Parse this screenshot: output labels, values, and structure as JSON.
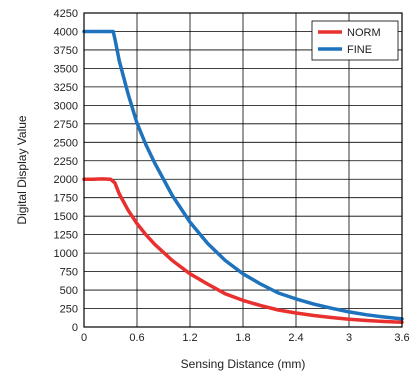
{
  "chart_data": {
    "type": "line",
    "title": "",
    "xlabel": "Sensing Distance (mm)",
    "ylabel": "Digital Display Value",
    "xlim": [
      0,
      3.6
    ],
    "ylim": [
      0,
      4250
    ],
    "x_ticks": [
      0,
      0.6,
      1.2,
      1.8,
      2.4,
      3,
      3.6
    ],
    "x_tick_labels": [
      "0",
      "0.6",
      "1.2",
      "1.8",
      "2.4",
      "3",
      "3.6"
    ],
    "y_ticks": [
      0,
      250,
      500,
      750,
      1000,
      1250,
      1500,
      1750,
      2000,
      2250,
      2500,
      2750,
      3000,
      3250,
      3500,
      3750,
      4000,
      4250
    ],
    "y_tick_labels": [
      "0",
      "250",
      "500",
      "750",
      "1000",
      "1250",
      "1500",
      "1750",
      "2000",
      "2250",
      "2500",
      "2750",
      "3000",
      "3250",
      "3500",
      "3750",
      "4000",
      "4250"
    ],
    "grid": true,
    "legend": "top-right",
    "series": [
      {
        "name": "NORM",
        "color": "#e8302f",
        "points": [
          [
            0,
            2000
          ],
          [
            0.1,
            2000
          ],
          [
            0.2,
            2005
          ],
          [
            0.3,
            2000
          ],
          [
            0.35,
            1950
          ],
          [
            0.4,
            1800
          ],
          [
            0.5,
            1580
          ],
          [
            0.6,
            1400
          ],
          [
            0.7,
            1250
          ],
          [
            0.8,
            1120
          ],
          [
            1.0,
            900
          ],
          [
            1.2,
            720
          ],
          [
            1.4,
            580
          ],
          [
            1.6,
            450
          ],
          [
            1.8,
            360
          ],
          [
            2.0,
            290
          ],
          [
            2.2,
            230
          ],
          [
            2.4,
            190
          ],
          [
            2.6,
            155
          ],
          [
            2.8,
            128
          ],
          [
            3.0,
            105
          ],
          [
            3.2,
            88
          ],
          [
            3.4,
            75
          ],
          [
            3.6,
            65
          ]
        ]
      },
      {
        "name": "FINE",
        "color": "#1f72bc",
        "points": [
          [
            0,
            4000
          ],
          [
            0.1,
            4000
          ],
          [
            0.2,
            4000
          ],
          [
            0.33,
            4000
          ],
          [
            0.35,
            3900
          ],
          [
            0.4,
            3600
          ],
          [
            0.5,
            3150
          ],
          [
            0.6,
            2760
          ],
          [
            0.7,
            2470
          ],
          [
            0.8,
            2220
          ],
          [
            1.0,
            1780
          ],
          [
            1.2,
            1420
          ],
          [
            1.4,
            1130
          ],
          [
            1.6,
            900
          ],
          [
            1.8,
            720
          ],
          [
            2.0,
            580
          ],
          [
            2.2,
            460
          ],
          [
            2.4,
            380
          ],
          [
            2.6,
            310
          ],
          [
            2.8,
            255
          ],
          [
            3.0,
            205
          ],
          [
            3.2,
            165
          ],
          [
            3.4,
            135
          ],
          [
            3.6,
            110
          ]
        ]
      }
    ]
  }
}
